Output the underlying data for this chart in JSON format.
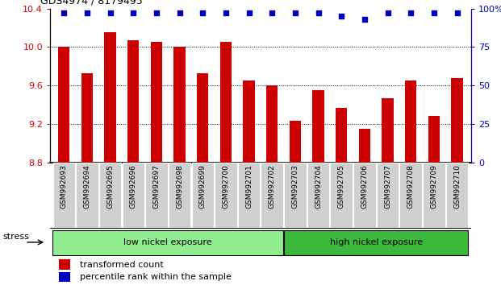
{
  "title": "GDS4974 / 8179495",
  "samples": [
    "GSM992693",
    "GSM992694",
    "GSM992695",
    "GSM992696",
    "GSM992697",
    "GSM992698",
    "GSM992699",
    "GSM992700",
    "GSM992701",
    "GSM992702",
    "GSM992703",
    "GSM992704",
    "GSM992705",
    "GSM992706",
    "GSM992707",
    "GSM992708",
    "GSM992709",
    "GSM992710"
  ],
  "bar_values": [
    10.0,
    9.73,
    10.15,
    10.07,
    10.05,
    10.0,
    9.73,
    10.05,
    9.65,
    9.6,
    9.23,
    9.55,
    9.37,
    9.15,
    9.47,
    9.65,
    9.28,
    9.68
  ],
  "percentile_values": [
    97,
    97,
    97,
    97,
    97,
    97,
    97,
    97,
    97,
    97,
    97,
    97,
    95,
    93,
    97,
    97,
    97,
    97
  ],
  "bar_color": "#cc0000",
  "dot_color": "#0000bb",
  "ymin": 8.8,
  "ymax": 10.4,
  "y2min": 0,
  "y2max": 100,
  "yticks": [
    8.8,
    9.2,
    9.6,
    10.0,
    10.4
  ],
  "y2ticks": [
    0,
    25,
    50,
    75,
    100
  ],
  "grid_values": [
    9.2,
    9.6,
    10.0
  ],
  "low_nickel_count": 10,
  "high_nickel_count": 8,
  "label_low": "low nickel exposure",
  "label_high": "high nickel exposure",
  "stress_label": "stress",
  "legend_bar_label": "transformed count",
  "legend_dot_label": "percentile rank within the sample",
  "bg_plot": "#ffffff",
  "tick_bg": "#d0d0d0",
  "green_low": "#90ee90",
  "green_high": "#3cb83c",
  "fig_bg": "#ffffff"
}
